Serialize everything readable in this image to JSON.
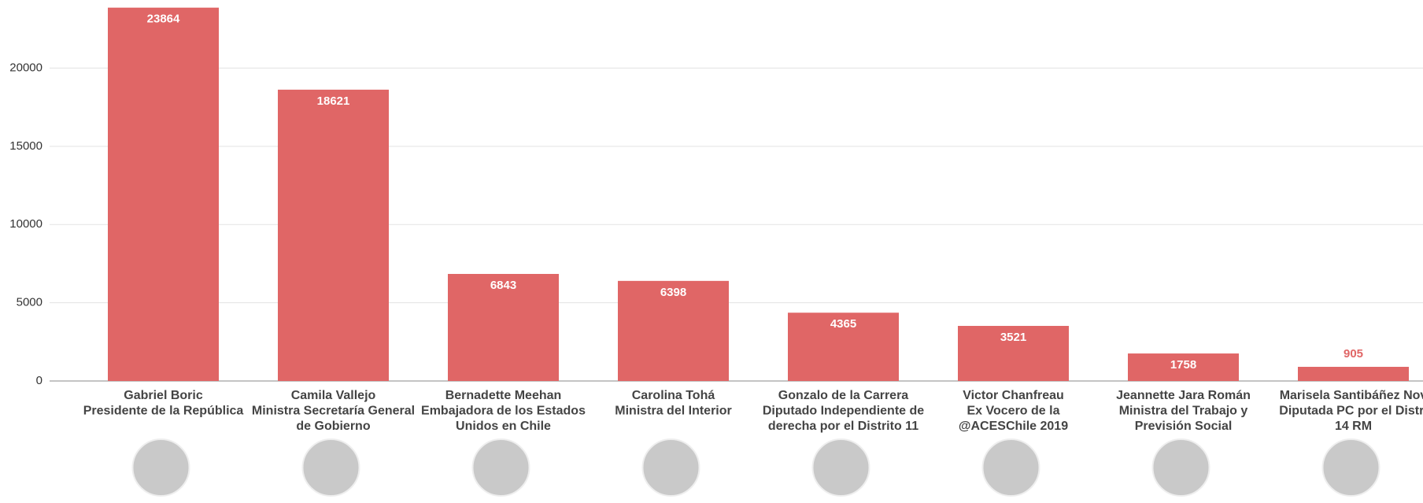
{
  "chart_data": {
    "type": "bar",
    "categories": [
      [
        "Gabriel Boric",
        "Presidente de la República"
      ],
      [
        "Camila Vallejo",
        "Ministra Secretaría General",
        "de Gobierno"
      ],
      [
        "Bernadette Meehan",
        "Embajadora de los Estados",
        "Unidos en Chile"
      ],
      [
        "Carolina Tohá",
        "Ministra del Interior"
      ],
      [
        "Gonzalo de la Carrera",
        "Diputado Independiente de",
        "derecha por el Distrito 11"
      ],
      [
        "Victor Chanfreau",
        "Ex Vocero de la",
        "@ACESChile 2019"
      ],
      [
        "Jeannette Jara Román",
        "Ministra del Trabajo y",
        "Previsión Social"
      ],
      [
        "Marisela Santibáñez Nov",
        "Diputada PC por el Distri",
        "14 RM"
      ]
    ],
    "values": [
      23864,
      18621,
      6843,
      6398,
      4365,
      3521,
      1758,
      905
    ],
    "color": "#e06666",
    "ylim": [
      0,
      24000
    ],
    "yticks": [
      0,
      5000,
      10000,
      15000,
      20000
    ],
    "grid": true
  }
}
